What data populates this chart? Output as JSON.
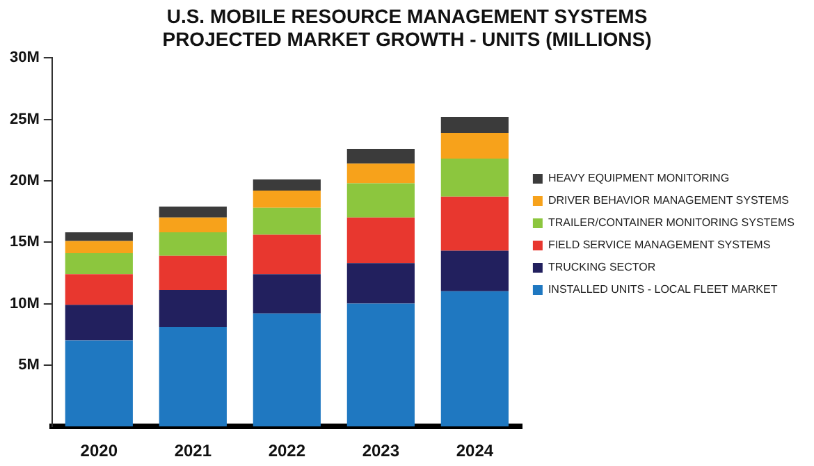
{
  "chart_data": {
    "type": "bar",
    "title": "U.S. MOBILE RESOURCE MANAGEMENT SYSTEMS PROJECTED MARKET GROWTH - UNITS (MILLIONS)",
    "stacked": true,
    "categories": [
      "2020",
      "2021",
      "2022",
      "2023",
      "2024"
    ],
    "series": [
      {
        "name": "INSTALLED UNITS - LOCAL FLEET MARKET",
        "color": "#1f78c1",
        "values": [
          7.0,
          8.1,
          9.2,
          10.0,
          11.0
        ]
      },
      {
        "name": "TRUCKING SECTOR",
        "color": "#22205e",
        "values": [
          2.9,
          3.0,
          3.2,
          3.3,
          3.3
        ]
      },
      {
        "name": "FIELD SERVICE MANAGEMENT SYSTEMS",
        "color": "#e8372f",
        "values": [
          2.5,
          2.8,
          3.2,
          3.7,
          4.4
        ]
      },
      {
        "name": "TRAILER/CONTAINER MONITORING SYSTEMS",
        "color": "#8cc63e",
        "values": [
          1.7,
          1.9,
          2.2,
          2.8,
          3.1
        ]
      },
      {
        "name": "DRIVER BEHAVIOR MANAGEMENT SYSTEMS",
        "color": "#f7a21b",
        "values": [
          1.0,
          1.2,
          1.4,
          1.6,
          2.1
        ]
      },
      {
        "name": "HEAVY EQUIPMENT MONITORING",
        "color": "#3b3b3b",
        "values": [
          0.7,
          0.9,
          0.9,
          1.2,
          1.3
        ]
      }
    ],
    "ylim": [
      0,
      30
    ],
    "yticks": [
      {
        "value": 5,
        "label": "5M"
      },
      {
        "value": 10,
        "label": "10M"
      },
      {
        "value": 15,
        "label": "15M"
      },
      {
        "value": 20,
        "label": "20M"
      },
      {
        "value": 25,
        "label": "25M"
      },
      {
        "value": 30,
        "label": "30M"
      }
    ],
    "grid": false,
    "legend": "right"
  }
}
